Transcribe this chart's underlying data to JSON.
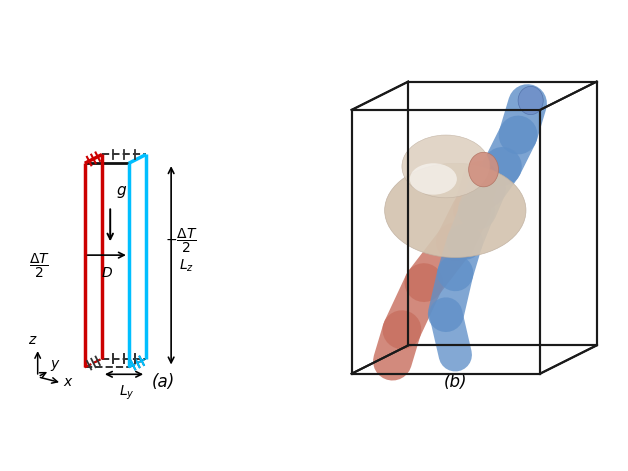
{
  "fig_width": 6.28,
  "fig_height": 4.71,
  "dpi": 100,
  "background_color": "#ffffff",
  "panel_a_label": "(a)",
  "panel_b_label": "(b)",
  "red_color": "#cc0000",
  "cyan_color": "#00bfff",
  "black_color": "#111111",
  "dashed_color": "#333333",
  "box_color": "#1a1a1a",
  "warm_color": "#c87060",
  "cool_color": "#6090c8",
  "blob_color": "#d4c4b0"
}
